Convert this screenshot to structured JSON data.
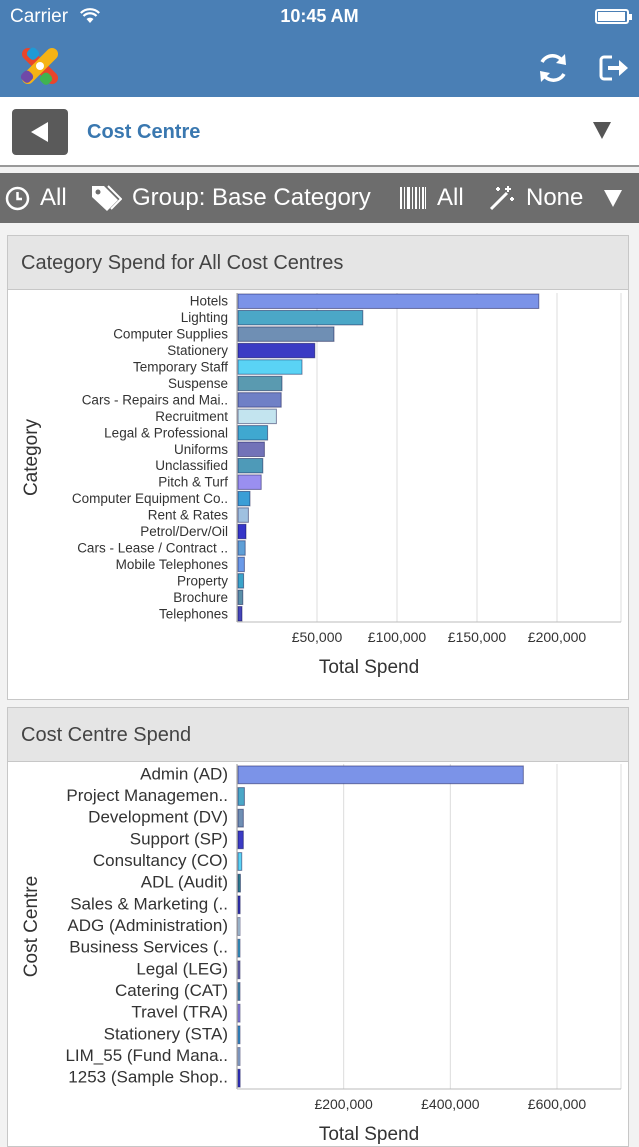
{
  "status": {
    "carrier": "Carrier",
    "time": "10:45 AM"
  },
  "header": {
    "title": "Cost Centre"
  },
  "filters": {
    "time": "All",
    "group": "Group: Base Category",
    "barcode": "All",
    "effect": "None"
  },
  "colors": {
    "brand": "#4a7fb5",
    "title": "#3a78b0",
    "filterbar": "#6d6d6d"
  },
  "charts": [
    {
      "title": "Category Spend for All Cost Centres",
      "chart_data": {
        "type": "bar",
        "orientation": "horizontal",
        "ylabel": "Category",
        "xlabel": "Total Spend",
        "xlim": [
          0,
          240000
        ],
        "xticks": [
          50000,
          100000,
          150000,
          200000
        ],
        "xtick_labels": [
          "£50,000",
          "£100,000",
          "£150,000",
          "£200,000"
        ],
        "categories": [
          "Hotels",
          "Lighting",
          "Computer Supplies",
          "Stationery",
          "Temporary Staff",
          "Suspense",
          "Cars -  Repairs and Mai..",
          "Recruitment",
          "Legal & Professional",
          "Uniforms",
          "Unclassified",
          "Pitch & Turf",
          "Computer Equipment Co..",
          "Rent & Rates",
          "Petrol/Derv/Oil",
          "Cars - Lease / Contract ..",
          "Mobile Telephones",
          "Property",
          "Brochure",
          "Telephones"
        ],
        "values": [
          188000,
          78000,
          60000,
          48000,
          40000,
          27500,
          27000,
          24000,
          18500,
          16500,
          15500,
          14500,
          7500,
          6500,
          5000,
          4500,
          4000,
          3500,
          3000,
          2500
        ],
        "colors": [
          "#7b93e8",
          "#4ba7c7",
          "#6f8fb4",
          "#3b3bc4",
          "#5ad3f5",
          "#5a9ab0",
          "#6f80c6",
          "#c3e4ef",
          "#3fa8d0",
          "#7272b8",
          "#4e9ab8",
          "#9a8ff0",
          "#3b9ed6",
          "#9fc0e0",
          "#3535c8",
          "#5f9fd6",
          "#6a9ae8",
          "#3aa3c9",
          "#5a8fa8",
          "#4545b8"
        ]
      }
    },
    {
      "title": "Cost Centre Spend",
      "chart_data": {
        "type": "bar",
        "orientation": "horizontal",
        "ylabel": "Cost Centre",
        "xlabel": "Total Spend",
        "xlim": [
          0,
          720000
        ],
        "xticks": [
          200000,
          400000,
          600000
        ],
        "xtick_labels": [
          "£200,000",
          "£400,000",
          "£600,000"
        ],
        "categories": [
          "Admin (AD)",
          "Project Managemen..",
          "Development (DV)",
          "Support (SP)",
          "Consultancy (CO)",
          "ADL (Audit)",
          "Sales & Marketing (..",
          "ADG (Administration)",
          "Business Services (..",
          "Legal (LEG)",
          "Catering (CAT)",
          "Travel (TRA)",
          "Stationery (STA)",
          "LIM_55 (Fund Mana..",
          "1253 (Sample Shop.."
        ],
        "values": [
          535000,
          12000,
          10000,
          10000,
          7000,
          4500,
          4000,
          2500,
          3500,
          3000,
          3000,
          2500,
          2500,
          2000,
          4000
        ],
        "colors": [
          "#7b93e8",
          "#4ba7c7",
          "#6f8fb4",
          "#3b3bc4",
          "#5ad3f5",
          "#2f7f90",
          "#3535b8",
          "#c3e4ef",
          "#3fa8d0",
          "#7272b8",
          "#4e9ab8",
          "#9a8ff0",
          "#3b9ed6",
          "#9fc0e0",
          "#3535c8"
        ]
      }
    }
  ]
}
